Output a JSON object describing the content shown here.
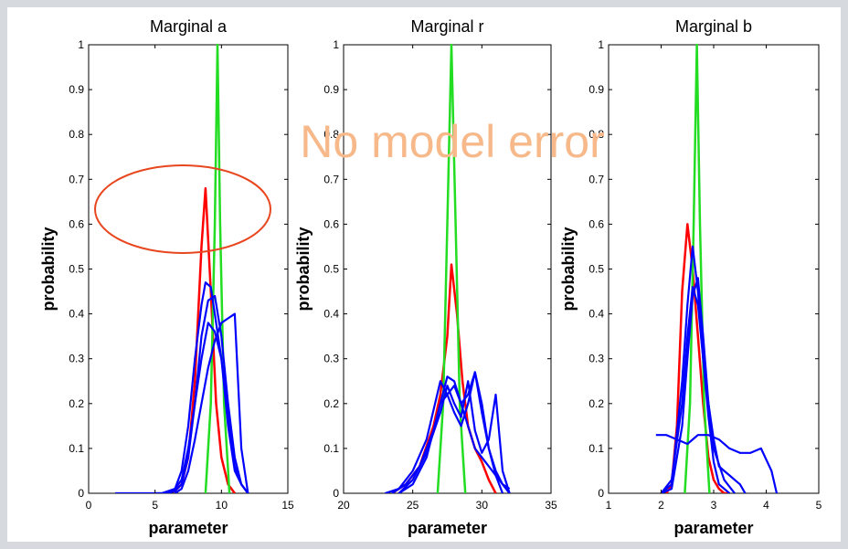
{
  "overlay": {
    "label": "No model error",
    "label_color": "#f7b98a",
    "ellipse_color": "#e8461e"
  },
  "colors": {
    "background": "#d6d9dd",
    "panel": "#ffffff",
    "red": "#ff0000",
    "green": "#22dd22",
    "blue": "#0000ff"
  },
  "chart_data": [
    {
      "type": "line",
      "title": "Marginal a",
      "xlabel": "parameter",
      "ylabel": "probability",
      "xlim": [
        0,
        15
      ],
      "ylim": [
        0,
        1
      ],
      "xticks": [
        0,
        5,
        10,
        15
      ],
      "yticks": [
        0,
        0.1,
        0.2,
        0.3,
        0.4,
        0.5,
        0.6,
        0.7,
        0.8,
        0.9,
        1
      ],
      "grid": false,
      "series": [
        {
          "color": "red",
          "x": [
            6.0,
            6.5,
            7.0,
            7.5,
            8.0,
            8.5,
            8.8,
            9.2,
            9.6,
            10.0,
            10.5,
            11.0
          ],
          "y": [
            0,
            0.005,
            0.02,
            0.08,
            0.25,
            0.55,
            0.68,
            0.45,
            0.2,
            0.08,
            0.02,
            0
          ]
        },
        {
          "color": "green",
          "x": [
            8.8,
            9.2,
            9.5,
            9.7,
            9.9,
            10.2,
            10.6
          ],
          "y": [
            0,
            0.2,
            0.6,
            1.0,
            0.6,
            0.2,
            0
          ]
        },
        {
          "color": "blue",
          "x": [
            2,
            3,
            4,
            5,
            5.5,
            6,
            6.5,
            7,
            7.5,
            8,
            8.5,
            9,
            9.5,
            10,
            10.5,
            11,
            11.5,
            12
          ],
          "y": [
            0,
            0,
            0,
            0,
            0,
            0.005,
            0.01,
            0.03,
            0.1,
            0.2,
            0.3,
            0.38,
            0.36,
            0.3,
            0.18,
            0.06,
            0.02,
            0
          ]
        },
        {
          "color": "blue",
          "x": [
            5,
            6,
            6.5,
            7,
            7.5,
            8,
            8.5,
            8.8,
            9.2,
            10,
            10.5,
            11,
            11.5,
            12
          ],
          "y": [
            0,
            0,
            0.01,
            0.05,
            0.15,
            0.3,
            0.42,
            0.47,
            0.46,
            0.3,
            0.15,
            0.05,
            0.02,
            0
          ]
        },
        {
          "color": "blue",
          "x": [
            6,
            6.5,
            7,
            7.5,
            8,
            8.5,
            9,
            9.5,
            10,
            10.5,
            11,
            11.5,
            12
          ],
          "y": [
            0,
            0.005,
            0.02,
            0.08,
            0.2,
            0.35,
            0.43,
            0.44,
            0.35,
            0.2,
            0.08,
            0.02,
            0
          ]
        },
        {
          "color": "blue",
          "x": [
            6.5,
            7,
            7.5,
            8,
            8.5,
            9,
            9.5,
            10,
            10.5,
            11,
            11.5,
            12
          ],
          "y": [
            0,
            0.01,
            0.05,
            0.12,
            0.2,
            0.28,
            0.34,
            0.38,
            0.39,
            0.4,
            0.1,
            0
          ]
        }
      ]
    },
    {
      "type": "line",
      "title": "Marginal r",
      "xlabel": "parameter",
      "ylabel": "probability",
      "xlim": [
        20,
        35
      ],
      "ylim": [
        0,
        1
      ],
      "xticks": [
        20,
        25,
        30,
        35
      ],
      "yticks": [
        0,
        0.1,
        0.2,
        0.3,
        0.4,
        0.5,
        0.6,
        0.7,
        0.8,
        0.9,
        1
      ],
      "grid": false,
      "series": [
        {
          "color": "red",
          "x": [
            23.5,
            24.5,
            25.5,
            26.5,
            27.0,
            27.5,
            27.8,
            28.2,
            28.6,
            29.0,
            29.5,
            30.0,
            30.5,
            31.0
          ],
          "y": [
            0,
            0.02,
            0.06,
            0.15,
            0.22,
            0.35,
            0.51,
            0.4,
            0.25,
            0.15,
            0.1,
            0.07,
            0.03,
            0
          ]
        },
        {
          "color": "green",
          "x": [
            26.8,
            27.2,
            27.5,
            27.8,
            28.1,
            28.4,
            28.8
          ],
          "y": [
            0,
            0.2,
            0.6,
            1.0,
            0.6,
            0.2,
            0
          ]
        },
        {
          "color": "blue",
          "x": [
            23,
            24,
            25,
            26,
            27,
            27.5,
            28,
            28.5,
            29,
            29.5,
            30,
            30.5,
            31,
            31.5,
            32
          ],
          "y": [
            0,
            0.01,
            0.05,
            0.12,
            0.25,
            0.22,
            0.18,
            0.15,
            0.2,
            0.27,
            0.18,
            0.1,
            0.05,
            0.02,
            0
          ]
        },
        {
          "color": "blue",
          "x": [
            23.5,
            24.5,
            25.5,
            26.5,
            27.0,
            27.5,
            28.0,
            28.5,
            29.0,
            29.5,
            30.0,
            30.5,
            31.0,
            31.5
          ],
          "y": [
            0,
            0.02,
            0.06,
            0.14,
            0.2,
            0.26,
            0.25,
            0.2,
            0.22,
            0.27,
            0.2,
            0.1,
            0.04,
            0
          ]
        },
        {
          "color": "blue",
          "x": [
            24,
            25,
            26,
            27,
            27.5,
            28,
            28.5,
            29,
            29.5,
            30,
            30.5,
            31,
            31.5,
            32
          ],
          "y": [
            0,
            0.03,
            0.09,
            0.18,
            0.24,
            0.2,
            0.17,
            0.25,
            0.14,
            0.09,
            0.12,
            0.22,
            0.05,
            0
          ]
        },
        {
          "color": "blue",
          "x": [
            24,
            25,
            26,
            27,
            28,
            28.5,
            29,
            29.5,
            30,
            30.5,
            31,
            31.5,
            32
          ],
          "y": [
            0,
            0.02,
            0.08,
            0.2,
            0.24,
            0.2,
            0.15,
            0.1,
            0.08,
            0.06,
            0.04,
            0.02,
            0.01
          ]
        }
      ]
    },
    {
      "type": "line",
      "title": "Marginal b",
      "xlabel": "parameter",
      "ylabel": "probability",
      "xlim": [
        1,
        5
      ],
      "ylim": [
        0,
        1
      ],
      "xticks": [
        1,
        2,
        3,
        4,
        5
      ],
      "yticks": [
        0,
        0.1,
        0.2,
        0.3,
        0.4,
        0.5,
        0.6,
        0.7,
        0.8,
        0.9,
        1
      ],
      "grid": false,
      "series": [
        {
          "color": "red",
          "x": [
            2.1,
            2.2,
            2.3,
            2.4,
            2.5,
            2.6,
            2.7,
            2.8,
            2.9,
            3.0,
            3.1,
            3.2,
            3.3
          ],
          "y": [
            0,
            0.02,
            0.15,
            0.45,
            0.6,
            0.5,
            0.35,
            0.2,
            0.08,
            0.03,
            0.01,
            0,
            0
          ]
        },
        {
          "color": "green",
          "x": [
            2.45,
            2.55,
            2.62,
            2.68,
            2.74,
            2.82,
            2.92
          ],
          "y": [
            0,
            0.2,
            0.6,
            1.0,
            0.6,
            0.2,
            0
          ]
        },
        {
          "color": "blue",
          "x": [
            1.9,
            2.1,
            2.3,
            2.5,
            2.7,
            2.9,
            3.1,
            3.3,
            3.5,
            3.7,
            3.9,
            4.1,
            4.2
          ],
          "y": [
            0.13,
            0.13,
            0.12,
            0.11,
            0.13,
            0.13,
            0.12,
            0.1,
            0.09,
            0.09,
            0.1,
            0.05,
            0
          ]
        },
        {
          "color": "blue",
          "x": [
            2.0,
            2.2,
            2.4,
            2.5,
            2.6,
            2.7,
            2.8,
            2.9,
            3.0,
            3.1,
            3.2,
            3.3
          ],
          "y": [
            0,
            0.02,
            0.25,
            0.42,
            0.55,
            0.45,
            0.3,
            0.17,
            0.07,
            0.02,
            0.01,
            0
          ]
        },
        {
          "color": "blue",
          "x": [
            2.0,
            2.2,
            2.4,
            2.5,
            2.6,
            2.7,
            2.8,
            2.9,
            3.0,
            3.1,
            3.2,
            3.3,
            3.4,
            3.5,
            3.6
          ],
          "y": [
            0,
            0.03,
            0.2,
            0.35,
            0.46,
            0.42,
            0.3,
            0.2,
            0.12,
            0.06,
            0.05,
            0.04,
            0.03,
            0.02,
            0
          ]
        },
        {
          "color": "blue",
          "x": [
            2.0,
            2.2,
            2.4,
            2.5,
            2.6,
            2.7,
            2.8,
            2.9,
            3.0,
            3.2,
            3.4
          ],
          "y": [
            0,
            0.01,
            0.15,
            0.3,
            0.44,
            0.48,
            0.35,
            0.2,
            0.1,
            0.03,
            0
          ]
        }
      ]
    }
  ]
}
